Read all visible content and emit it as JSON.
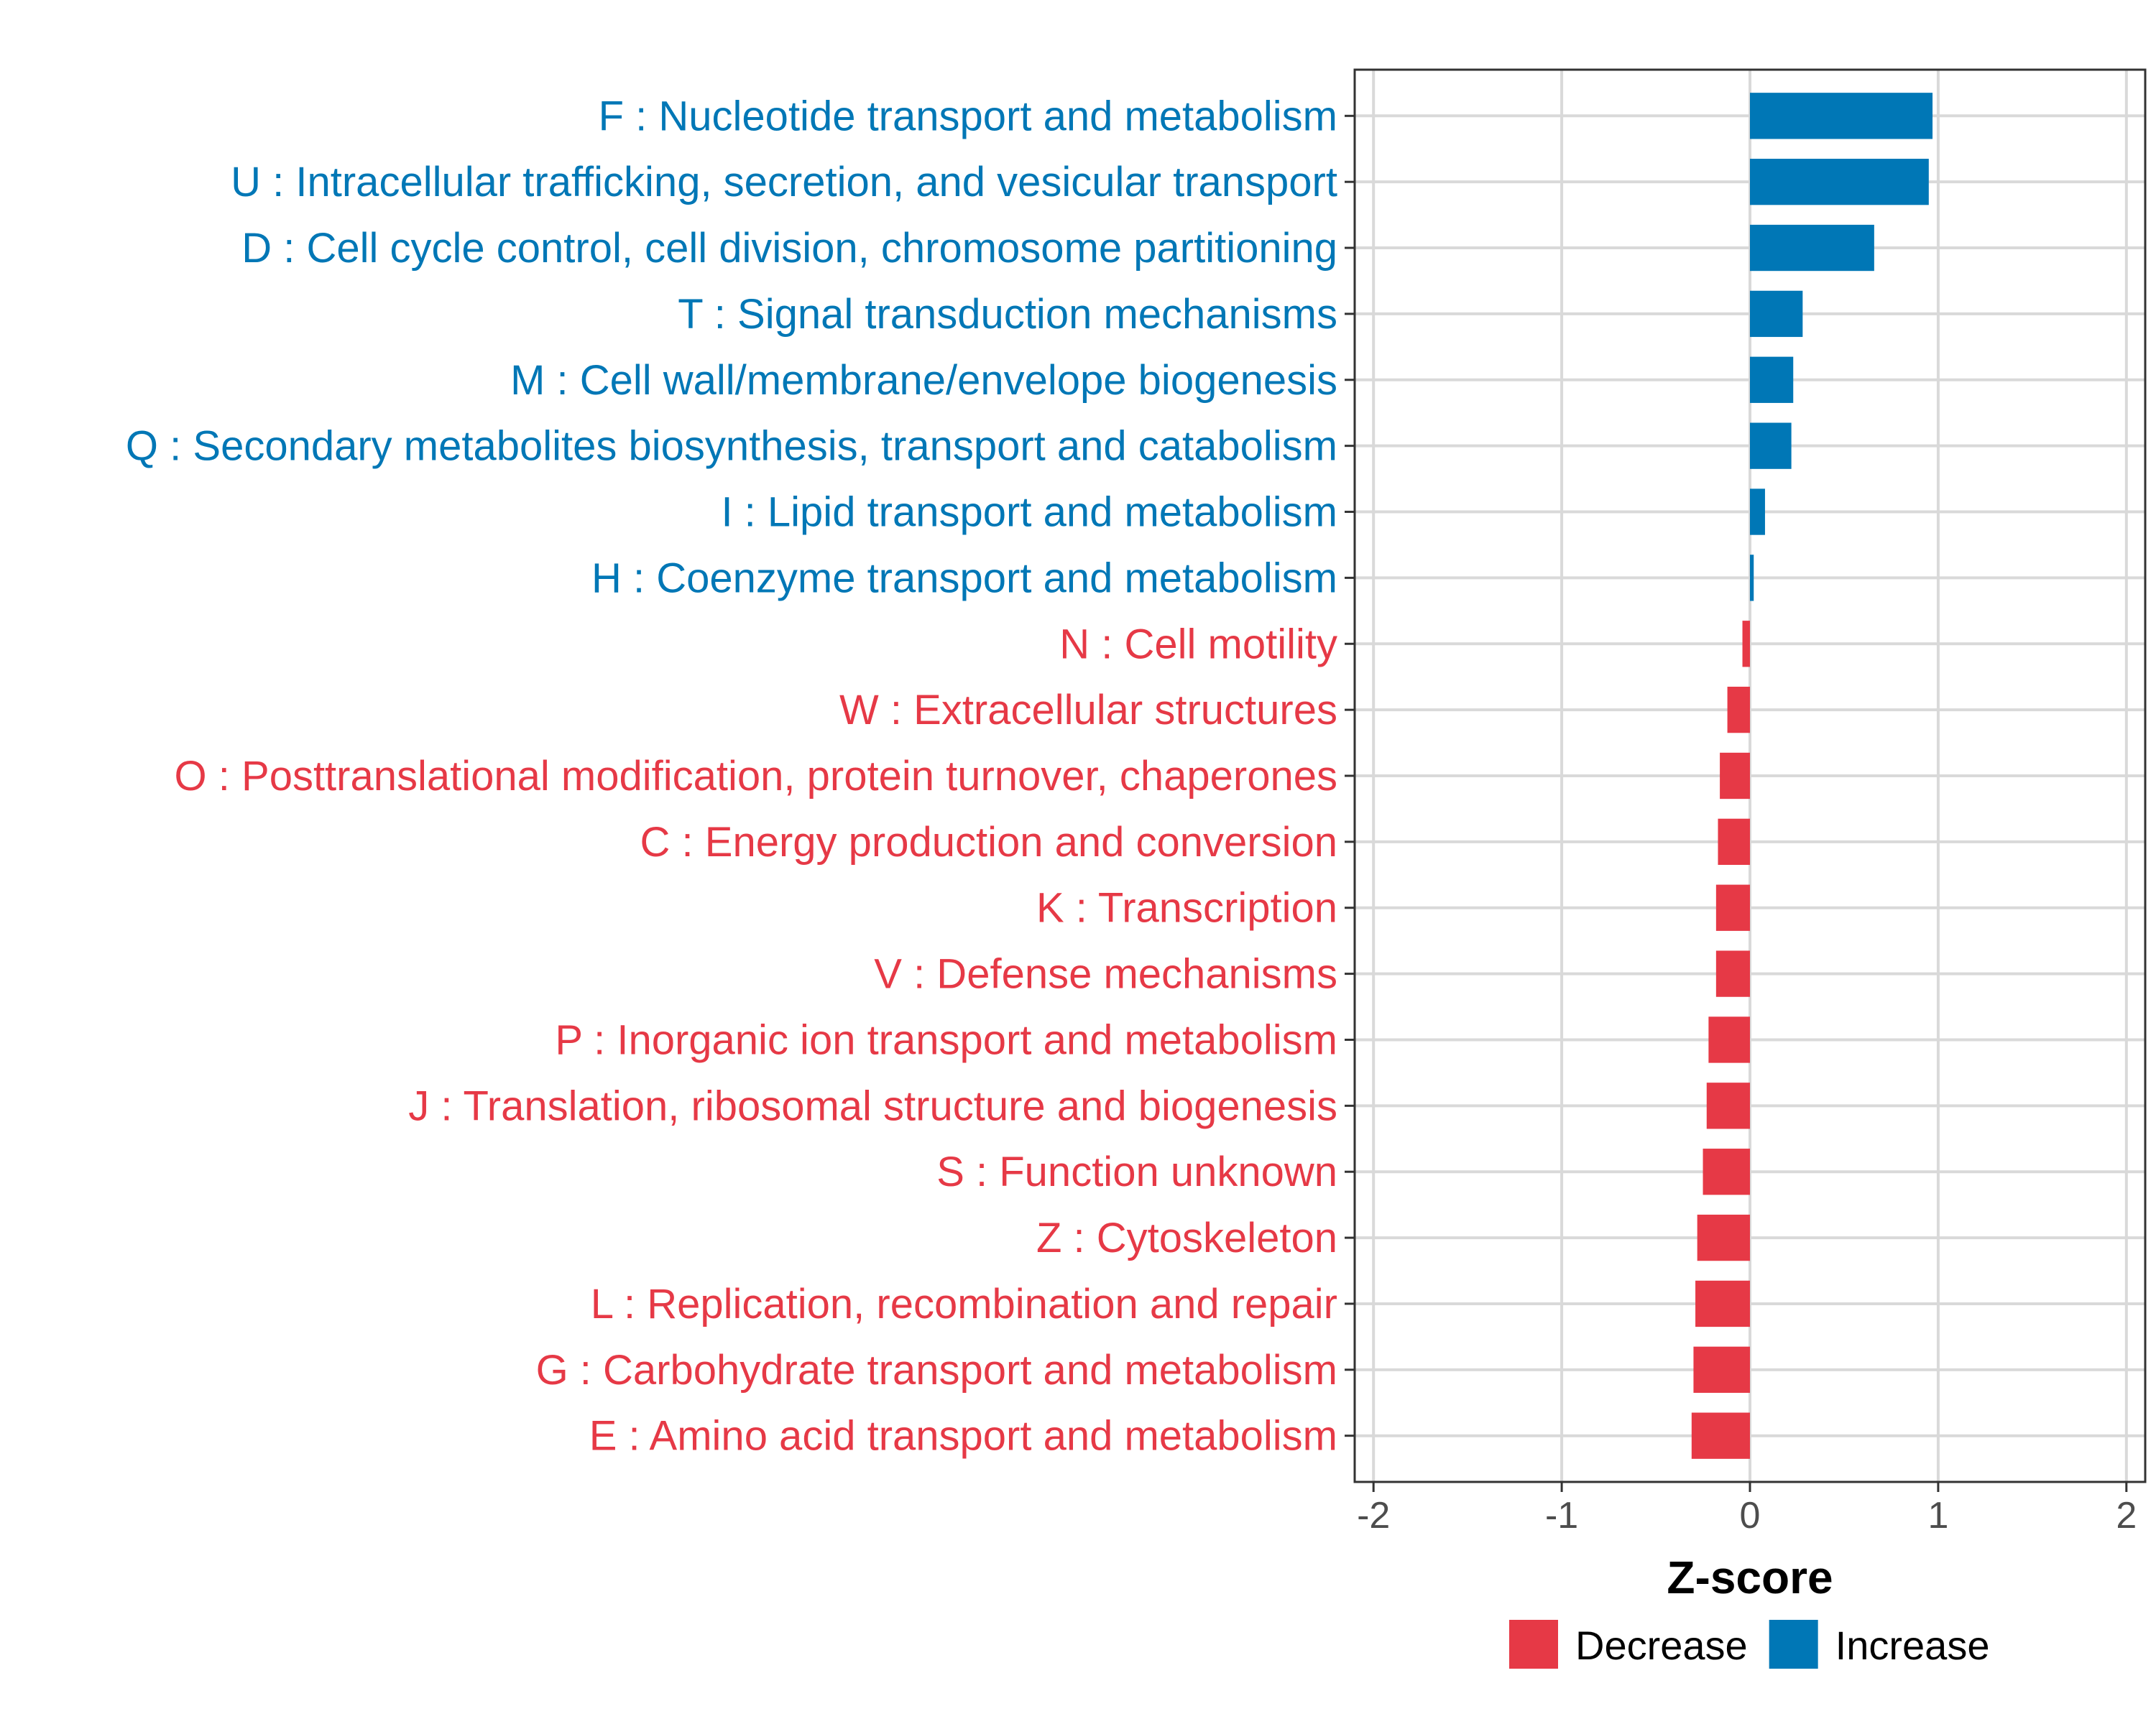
{
  "chart_data": {
    "type": "bar",
    "orientation": "horizontal",
    "title": "",
    "xlabel": "Z-score",
    "ylabel": "",
    "xlim": [
      -2.1,
      2.1
    ],
    "xticks": [
      -2,
      -1,
      0,
      1,
      2
    ],
    "xtick_labels": [
      "-2",
      "-1",
      "0",
      "1",
      "2"
    ],
    "grid": true,
    "legend_position": "bottom",
    "colors": {
      "Decrease": "#e63946",
      "Increase": "#0077b6"
    },
    "categories": [
      "F : Nucleotide transport and metabolism",
      "U : Intracellular trafficking, secretion, and vesicular transport",
      "D : Cell cycle control, cell division, chromosome partitioning",
      "T : Signal transduction mechanisms",
      "M : Cell wall/membrane/envelope biogenesis",
      "Q : Secondary metabolites biosynthesis, transport and catabolism",
      "I : Lipid transport and metabolism",
      "H : Coenzyme transport and metabolism",
      "N : Cell motility",
      "W : Extracellular structures",
      "O : Posttranslational modification, protein turnover, chaperones",
      "C : Energy production and conversion",
      "K : Transcription",
      "V : Defense mechanisms",
      "P : Inorganic ion transport and metabolism",
      "J : Translation, ribosomal structure and biogenesis",
      "S : Function unknown",
      "Z : Cytoskeleton",
      "L : Replication, recombination and repair",
      "G : Carbohydrate transport and metabolism",
      "E : Amino acid transport and metabolism"
    ],
    "values": [
      0.97,
      0.95,
      0.66,
      0.28,
      0.23,
      0.22,
      0.08,
      0.02,
      -0.04,
      -0.12,
      -0.16,
      -0.17,
      -0.18,
      -0.18,
      -0.22,
      -0.23,
      -0.25,
      -0.28,
      -0.29,
      -0.3,
      -0.31
    ],
    "groups": [
      "Increase",
      "Increase",
      "Increase",
      "Increase",
      "Increase",
      "Increase",
      "Increase",
      "Increase",
      "Decrease",
      "Decrease",
      "Decrease",
      "Decrease",
      "Decrease",
      "Decrease",
      "Decrease",
      "Decrease",
      "Decrease",
      "Decrease",
      "Decrease",
      "Decrease",
      "Decrease"
    ],
    "legend": [
      "Decrease",
      "Increase"
    ]
  }
}
